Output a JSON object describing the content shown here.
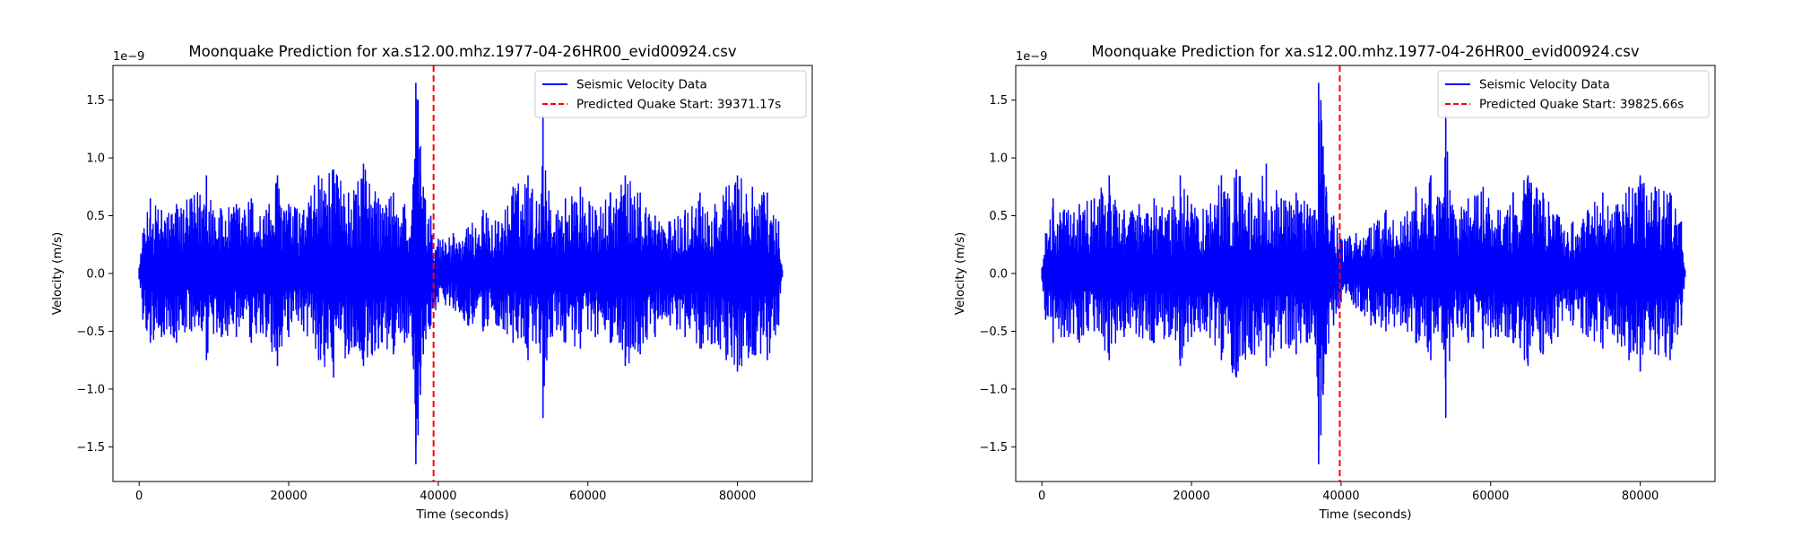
{
  "chart_data": [
    {
      "type": "line",
      "title": "Moonquake Prediction for xa.s12.00.mhz.1977-04-26HR00_evid00924.csv",
      "xlabel": "Time (seconds)",
      "ylabel": "Velocity (m/s)",
      "y_offset_label": "1e−9",
      "xlim": [
        -3500,
        90000
      ],
      "ylim": [
        -1.8,
        1.8
      ],
      "x_ticks": [
        0,
        20000,
        40000,
        60000,
        80000
      ],
      "x_tick_labels": [
        "0",
        "20000",
        "40000",
        "60000",
        "80000"
      ],
      "y_ticks": [
        1.5,
        1.0,
        0.5,
        0.0,
        -0.5,
        -1.0,
        -1.5
      ],
      "y_tick_labels": [
        "1.5",
        "1.0",
        "0.5",
        "0.0",
        "−0.5",
        "−1.0",
        "−1.5"
      ],
      "grid": false,
      "legend_position": "top-right",
      "series": [
        {
          "name": "Seismic Velocity Data",
          "color": "#0000ff",
          "style": "solid",
          "envelope": {
            "x": [
              0,
              500,
              1500,
              3000,
              5000,
              7000,
              9000,
              11000,
              13000,
              15000,
              17000,
              18500,
              20000,
              22000,
              24000,
              26000,
              28000,
              30000,
              32000,
              34000,
              35500,
              36500,
              37000,
              37300,
              37600,
              38000,
              39000,
              40000,
              42000,
              44000,
              46000,
              48000,
              50000,
              52000,
              53500,
              54000,
              55000,
              57000,
              59000,
              61000,
              63000,
              65000,
              67000,
              69000,
              71000,
              73000,
              75000,
              77000,
              78500,
              80000,
              82000,
              84000,
              85500,
              86000
            ],
            "upper": [
              0.05,
              0.35,
              0.65,
              0.55,
              0.6,
              0.65,
              0.85,
              0.55,
              0.6,
              0.65,
              0.55,
              0.85,
              0.6,
              0.55,
              0.85,
              0.9,
              0.7,
              0.95,
              0.65,
              0.7,
              0.6,
              0.55,
              1.65,
              1.5,
              1.1,
              0.75,
              0.5,
              0.3,
              0.35,
              0.4,
              0.55,
              0.45,
              0.75,
              0.85,
              0.6,
              1.37,
              0.55,
              0.65,
              0.75,
              0.55,
              0.7,
              0.85,
              0.7,
              0.5,
              0.45,
              0.55,
              0.7,
              0.6,
              0.75,
              0.85,
              0.75,
              0.7,
              0.45,
              0.03
            ],
            "lower": [
              -0.05,
              -0.4,
              -0.6,
              -0.55,
              -0.6,
              -0.5,
              -0.75,
              -0.55,
              -0.55,
              -0.6,
              -0.55,
              -0.8,
              -0.55,
              -0.5,
              -0.75,
              -0.9,
              -0.7,
              -0.8,
              -0.65,
              -0.7,
              -0.6,
              -0.55,
              -1.65,
              -1.4,
              -1.05,
              -0.7,
              -0.45,
              -0.25,
              -0.3,
              -0.45,
              -0.5,
              -0.45,
              -0.6,
              -0.75,
              -0.6,
              -1.25,
              -0.55,
              -0.6,
              -0.65,
              -0.55,
              -0.6,
              -0.8,
              -0.7,
              -0.55,
              -0.45,
              -0.55,
              -0.65,
              -0.6,
              -0.75,
              -0.85,
              -0.7,
              -0.75,
              -0.45,
              -0.03
            ]
          }
        },
        {
          "name": "Predicted Quake Start: 39371.17s",
          "color": "#ff0000",
          "style": "dashed",
          "x": 39371.17
        }
      ]
    },
    {
      "type": "line",
      "title": "Moonquake Prediction for xa.s12.00.mhz.1977-04-26HR00_evid00924.csv",
      "xlabel": "Time (seconds)",
      "ylabel": "Velocity (m/s)",
      "y_offset_label": "1e−9",
      "xlim": [
        -3500,
        90000
      ],
      "ylim": [
        -1.8,
        1.8
      ],
      "x_ticks": [
        0,
        20000,
        40000,
        60000,
        80000
      ],
      "x_tick_labels": [
        "0",
        "20000",
        "40000",
        "60000",
        "80000"
      ],
      "y_ticks": [
        1.5,
        1.0,
        0.5,
        0.0,
        -0.5,
        -1.0,
        -1.5
      ],
      "y_tick_labels": [
        "1.5",
        "1.0",
        "0.5",
        "0.0",
        "−0.5",
        "−1.0",
        "−1.5"
      ],
      "grid": false,
      "legend_position": "top-right",
      "series": [
        {
          "name": "Seismic Velocity Data",
          "color": "#0000ff",
          "style": "solid",
          "envelope": {
            "x": [
              0,
              500,
              1500,
              3000,
              5000,
              7000,
              9000,
              11000,
              13000,
              15000,
              17000,
              18500,
              20000,
              22000,
              24000,
              26000,
              28000,
              30000,
              32000,
              34000,
              35500,
              36500,
              37000,
              37300,
              37600,
              38000,
              39000,
              40000,
              42000,
              44000,
              46000,
              48000,
              50000,
              52000,
              53500,
              54000,
              55000,
              57000,
              59000,
              61000,
              63000,
              65000,
              67000,
              69000,
              71000,
              73000,
              75000,
              77000,
              78500,
              80000,
              82000,
              84000,
              85500,
              86000
            ],
            "upper": [
              0.05,
              0.35,
              0.65,
              0.55,
              0.6,
              0.65,
              0.85,
              0.55,
              0.6,
              0.65,
              0.55,
              0.85,
              0.6,
              0.55,
              0.85,
              0.9,
              0.7,
              0.95,
              0.65,
              0.7,
              0.6,
              0.55,
              1.65,
              1.5,
              1.1,
              0.75,
              0.5,
              0.3,
              0.35,
              0.4,
              0.55,
              0.45,
              0.75,
              0.85,
              0.6,
              1.37,
              0.55,
              0.65,
              0.75,
              0.55,
              0.7,
              0.85,
              0.7,
              0.5,
              0.45,
              0.55,
              0.7,
              0.6,
              0.75,
              0.85,
              0.75,
              0.7,
              0.45,
              0.03
            ],
            "lower": [
              -0.05,
              -0.4,
              -0.6,
              -0.55,
              -0.6,
              -0.5,
              -0.75,
              -0.55,
              -0.55,
              -0.6,
              -0.55,
              -0.8,
              -0.55,
              -0.5,
              -0.75,
              -0.9,
              -0.7,
              -0.8,
              -0.65,
              -0.7,
              -0.6,
              -0.55,
              -1.65,
              -1.4,
              -1.05,
              -0.7,
              -0.45,
              -0.25,
              -0.3,
              -0.45,
              -0.5,
              -0.45,
              -0.6,
              -0.75,
              -0.6,
              -1.25,
              -0.55,
              -0.6,
              -0.65,
              -0.55,
              -0.6,
              -0.8,
              -0.7,
              -0.55,
              -0.45,
              -0.55,
              -0.65,
              -0.6,
              -0.75,
              -0.85,
              -0.7,
              -0.75,
              -0.45,
              -0.03
            ]
          }
        },
        {
          "name": "Predicted Quake Start: 39825.66s",
          "color": "#ff0000",
          "style": "dashed",
          "x": 39825.66
        }
      ]
    }
  ]
}
